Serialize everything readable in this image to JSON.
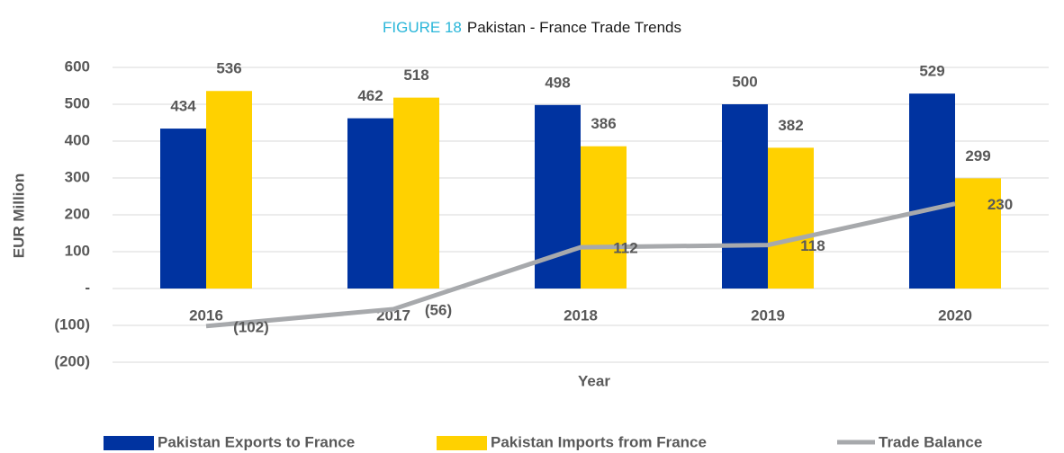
{
  "chart_data": {
    "type": "bar",
    "figure_label": "FIGURE 18",
    "title": "Pakistan - France Trade Trends",
    "x_label": "Year",
    "y_label": "EUR Million",
    "categories": [
      "2016",
      "2017",
      "2018",
      "2019",
      "2020"
    ],
    "series": [
      {
        "name": "Pakistan Exports to France",
        "color": "#0033a0",
        "type": "bar",
        "values": [
          434,
          462,
          498,
          500,
          529
        ]
      },
      {
        "name": "Pakistan Imports from France",
        "color": "#ffd100",
        "type": "bar",
        "values": [
          536,
          518,
          386,
          382,
          299
        ]
      },
      {
        "name": "Trade Balance",
        "color": "#a7a9ac",
        "type": "line",
        "values": [
          -102,
          -56,
          112,
          118,
          230
        ],
        "value_labels": [
          "(102)",
          "(56)",
          "112",
          "118",
          "230"
        ]
      }
    ],
    "ylim": [
      -200,
      600
    ],
    "yticks": [
      {
        "value": -200,
        "label": "(200)"
      },
      {
        "value": -100,
        "label": "(100)"
      },
      {
        "value": 0,
        "label": "-"
      },
      100,
      200,
      300,
      400,
      500,
      600
    ],
    "grid": true,
    "legend": "bottom"
  }
}
